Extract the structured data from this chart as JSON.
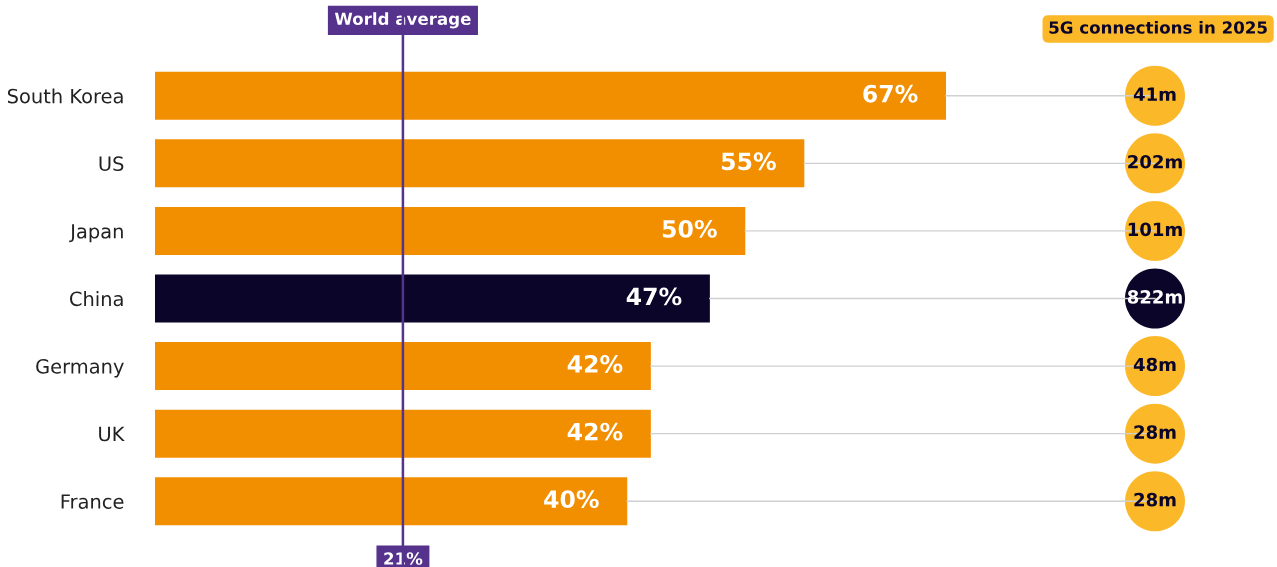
{
  "chart_data": {
    "type": "bar",
    "orientation": "horizontal",
    "categories": [
      "South Korea",
      "US",
      "Japan",
      "China",
      "Germany",
      "UK",
      "France"
    ],
    "values": [
      67,
      55,
      50,
      47,
      42,
      42,
      40
    ],
    "value_labels": [
      "67%",
      "55%",
      "50%",
      "47%",
      "42%",
      "42%",
      "40%"
    ],
    "colors": [
      "#f28f00",
      "#f28f00",
      "#f28f00",
      "#0b0529",
      "#f28f00",
      "#f28f00",
      "#f28f00"
    ],
    "ref_lines": [
      {
        "axis": "x",
        "value": 21,
        "label": "World average",
        "color": "#55328b"
      }
    ],
    "annotations": [
      "5G connections in 2025",
      {
        "text": "21%",
        "x": 21
      },
      "41m",
      "202m",
      "101m",
      "822m",
      "48m",
      "28m",
      "28m"
    ],
    "grid": false,
    "legend": false
  }
}
